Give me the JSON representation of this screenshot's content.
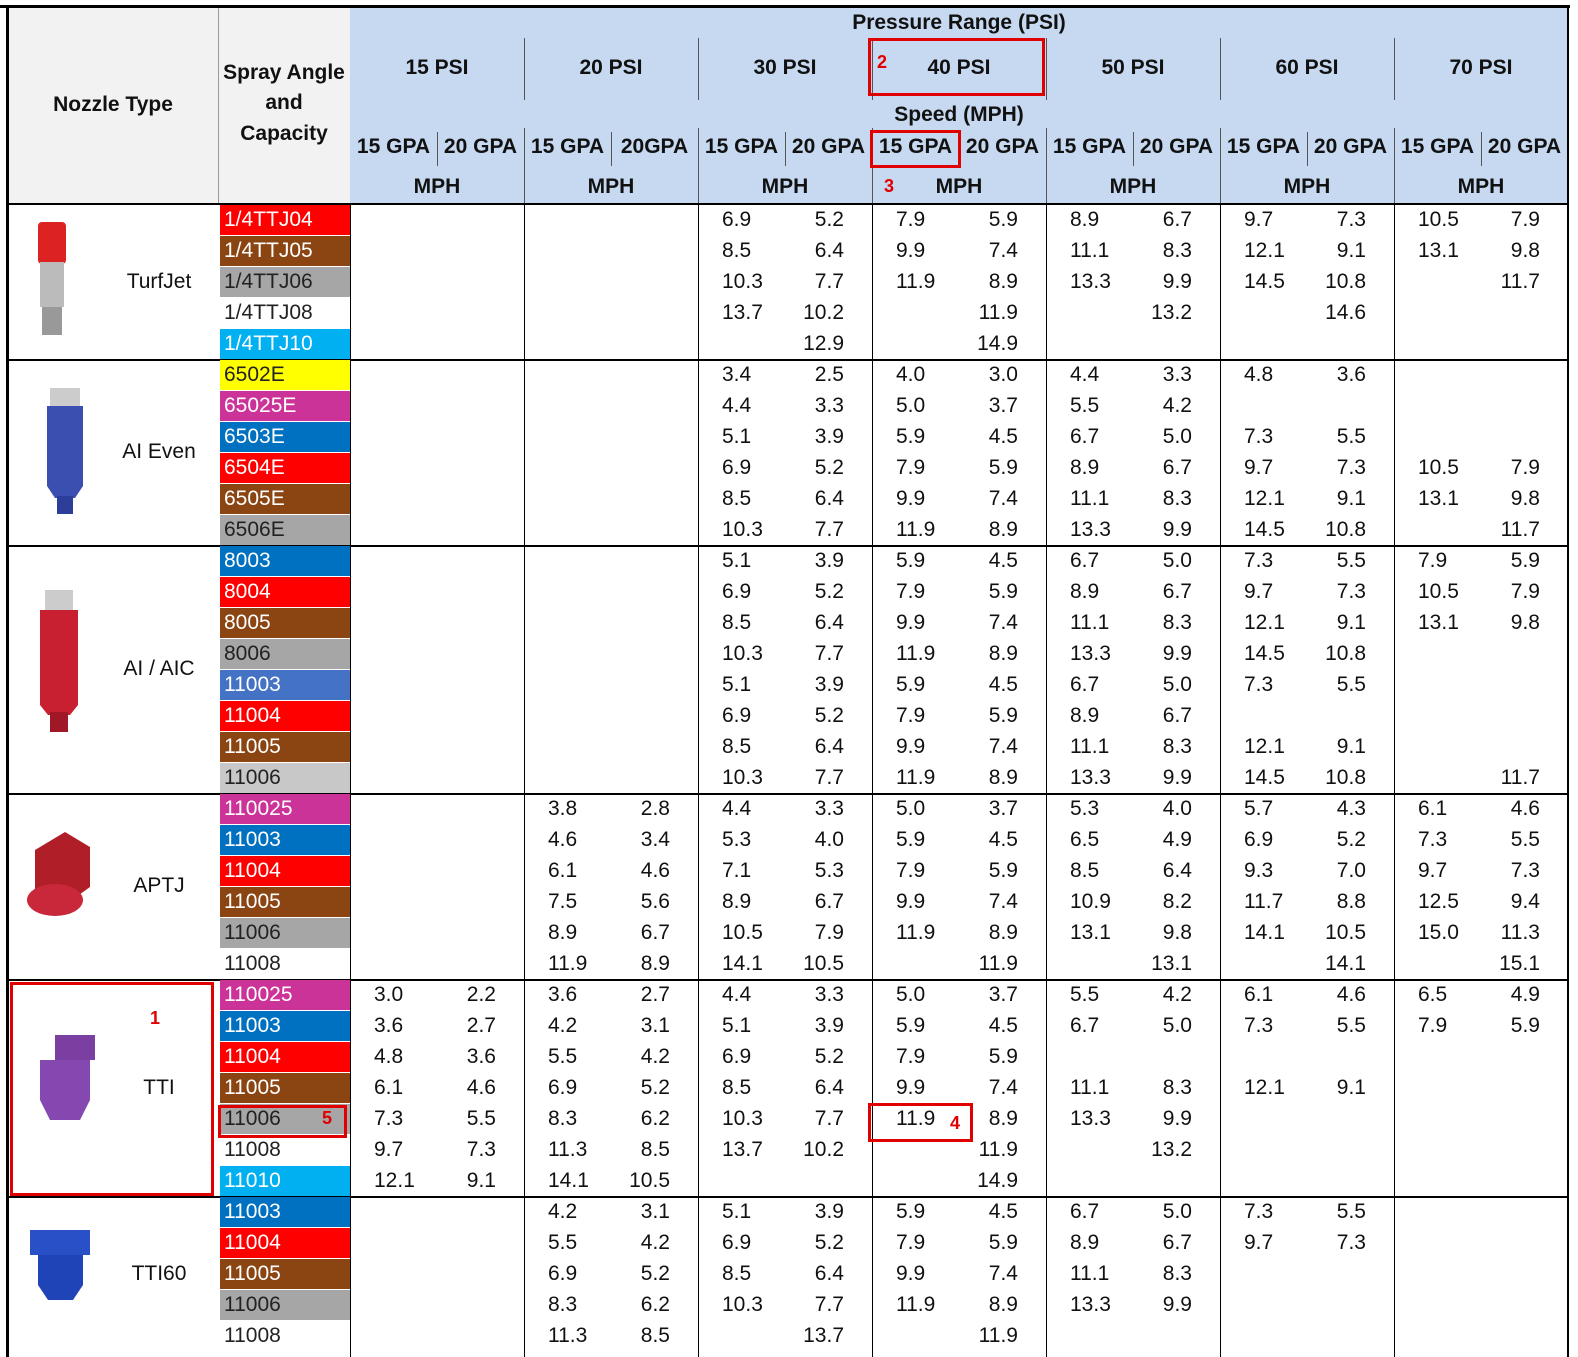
{
  "header": {
    "nozzle_type": "Nozzle Type",
    "spray_angle": "Spray Angle\nand\nCapacity",
    "pressure_range": "Pressure Range (PSI)",
    "speed": "Speed (MPH)",
    "pressures": [
      "15 PSI",
      "20 PSI",
      "30 PSI",
      "40 PSI",
      "50 PSI",
      "60 PSI",
      "70 PSI"
    ],
    "gpa": [
      "15 GPA",
      "20 GPA",
      "15 GPA",
      "20GPA",
      "15 GPA",
      "20 GPA",
      "15 GPA",
      "20 GPA",
      "15 GPA",
      "20 GPA",
      "15 GPA",
      "20 GPA",
      "15 GPA",
      "20 GPA"
    ],
    "mph": [
      "MPH",
      "MPH",
      "MPH",
      "MPH",
      "MPH",
      "MPH",
      "MPH"
    ]
  },
  "groups": [
    {
      "name": "TurfJet",
      "tips": [
        {
          "label": "1/4TTJ04",
          "color": "#ff0000",
          "values": [
            null,
            null,
            null,
            null,
            "6.9",
            "5.2",
            "7.9",
            "5.9",
            "8.9",
            "6.7",
            "9.7",
            "7.3",
            "10.5",
            "7.9"
          ]
        },
        {
          "label": "1/4TTJ05",
          "color": "#8b4513",
          "values": [
            null,
            null,
            null,
            null,
            "8.5",
            "6.4",
            "9.9",
            "7.4",
            "11.1",
            "8.3",
            "12.1",
            "9.1",
            "13.1",
            "9.8"
          ]
        },
        {
          "label": "1/4TTJ06",
          "color": "#a6a6a6",
          "values": [
            null,
            null,
            null,
            null,
            "10.3",
            "7.7",
            "11.9",
            "8.9",
            "13.3",
            "9.9",
            "14.5",
            "10.8",
            null,
            "11.7"
          ]
        },
        {
          "label": "1/4TTJ08",
          "color": "#ffffff",
          "values": [
            null,
            null,
            null,
            null,
            "13.7",
            "10.2",
            null,
            "11.9",
            null,
            "13.2",
            null,
            "14.6",
            null,
            null
          ]
        },
        {
          "label": "1/4TTJ10",
          "color": "#00b0f0",
          "values": [
            null,
            null,
            null,
            null,
            null,
            "12.9",
            null,
            "14.9",
            null,
            null,
            null,
            null,
            null,
            null
          ]
        }
      ]
    },
    {
      "name": "AI Even",
      "tips": [
        {
          "label": "6502E",
          "color": "#ffff00",
          "values": [
            null,
            null,
            null,
            null,
            "3.4",
            "2.5",
            "4.0",
            "3.0",
            "4.4",
            "3.3",
            "4.8",
            "3.6",
            null,
            null
          ]
        },
        {
          "label": "65025E",
          "color": "#cc3399",
          "values": [
            null,
            null,
            null,
            null,
            "4.4",
            "3.3",
            "5.0",
            "3.7",
            "5.5",
            "4.2",
            null,
            null,
            null,
            null
          ]
        },
        {
          "label": "6503E",
          "color": "#0070c0",
          "values": [
            null,
            null,
            null,
            null,
            "5.1",
            "3.9",
            "5.9",
            "4.5",
            "6.7",
            "5.0",
            "7.3",
            "5.5",
            null,
            null
          ]
        },
        {
          "label": "6504E",
          "color": "#ff0000",
          "values": [
            null,
            null,
            null,
            null,
            "6.9",
            "5.2",
            "7.9",
            "5.9",
            "8.9",
            "6.7",
            "9.7",
            "7.3",
            "10.5",
            "7.9"
          ]
        },
        {
          "label": "6505E",
          "color": "#8b4513",
          "values": [
            null,
            null,
            null,
            null,
            "8.5",
            "6.4",
            "9.9",
            "7.4",
            "11.1",
            "8.3",
            "12.1",
            "9.1",
            "13.1",
            "9.8"
          ]
        },
        {
          "label": "6506E",
          "color": "#a6a6a6",
          "values": [
            null,
            null,
            null,
            null,
            "10.3",
            "7.7",
            "11.9",
            "8.9",
            "13.3",
            "9.9",
            "14.5",
            "10.8",
            null,
            "11.7"
          ]
        }
      ]
    },
    {
      "name": "AI / AIC",
      "tips": [
        {
          "label": "8003",
          "color": "#0070c0",
          "values": [
            null,
            null,
            null,
            null,
            "5.1",
            "3.9",
            "5.9",
            "4.5",
            "6.7",
            "5.0",
            "7.3",
            "5.5",
            "7.9",
            "5.9"
          ]
        },
        {
          "label": "8004",
          "color": "#ff0000",
          "values": [
            null,
            null,
            null,
            null,
            "6.9",
            "5.2",
            "7.9",
            "5.9",
            "8.9",
            "6.7",
            "9.7",
            "7.3",
            "10.5",
            "7.9"
          ]
        },
        {
          "label": "8005",
          "color": "#8b4513",
          "values": [
            null,
            null,
            null,
            null,
            "8.5",
            "6.4",
            "9.9",
            "7.4",
            "11.1",
            "8.3",
            "12.1",
            "9.1",
            "13.1",
            "9.8"
          ]
        },
        {
          "label": "8006",
          "color": "#a6a6a6",
          "values": [
            null,
            null,
            null,
            null,
            "10.3",
            "7.7",
            "11.9",
            "8.9",
            "13.3",
            "9.9",
            "14.5",
            "10.8",
            null,
            null
          ]
        },
        {
          "label": "11003",
          "color": "#4472c4",
          "values": [
            null,
            null,
            null,
            null,
            "5.1",
            "3.9",
            "5.9",
            "4.5",
            "6.7",
            "5.0",
            "7.3",
            "5.5",
            null,
            null
          ]
        },
        {
          "label": "11004",
          "color": "#ff0000",
          "values": [
            null,
            null,
            null,
            null,
            "6.9",
            "5.2",
            "7.9",
            "5.9",
            "8.9",
            "6.7",
            null,
            null,
            null,
            null
          ]
        },
        {
          "label": "11005",
          "color": "#8b4513",
          "values": [
            null,
            null,
            null,
            null,
            "8.5",
            "6.4",
            "9.9",
            "7.4",
            "11.1",
            "8.3",
            "12.1",
            "9.1",
            null,
            null
          ]
        },
        {
          "label": "11006",
          "color": "#c8c8c8",
          "values": [
            null,
            null,
            null,
            null,
            "10.3",
            "7.7",
            "11.9",
            "8.9",
            "13.3",
            "9.9",
            "14.5",
            "10.8",
            null,
            "11.7"
          ]
        }
      ]
    },
    {
      "name": "APTJ",
      "tips": [
        {
          "label": "110025",
          "color": "#cc3399",
          "values": [
            null,
            null,
            "3.8",
            "2.8",
            "4.4",
            "3.3",
            "5.0",
            "3.7",
            "5.3",
            "4.0",
            "5.7",
            "4.3",
            "6.1",
            "4.6"
          ]
        },
        {
          "label": "11003",
          "color": "#0070c0",
          "values": [
            null,
            null,
            "4.6",
            "3.4",
            "5.3",
            "4.0",
            "5.9",
            "4.5",
            "6.5",
            "4.9",
            "6.9",
            "5.2",
            "7.3",
            "5.5"
          ]
        },
        {
          "label": "11004",
          "color": "#ff0000",
          "values": [
            null,
            null,
            "6.1",
            "4.6",
            "7.1",
            "5.3",
            "7.9",
            "5.9",
            "8.5",
            "6.4",
            "9.3",
            "7.0",
            "9.7",
            "7.3"
          ]
        },
        {
          "label": "11005",
          "color": "#8b4513",
          "values": [
            null,
            null,
            "7.5",
            "5.6",
            "8.9",
            "6.7",
            "9.9",
            "7.4",
            "10.9",
            "8.2",
            "11.7",
            "8.8",
            "12.5",
            "9.4"
          ]
        },
        {
          "label": "11006",
          "color": "#a6a6a6",
          "values": [
            null,
            null,
            "8.9",
            "6.7",
            "10.5",
            "7.9",
            "11.9",
            "8.9",
            "13.1",
            "9.8",
            "14.1",
            "10.5",
            "15.0",
            "11.3"
          ]
        },
        {
          "label": "11008",
          "color": "#ffffff",
          "values": [
            null,
            null,
            "11.9",
            "8.9",
            "14.1",
            "10.5",
            null,
            "11.9",
            null,
            "13.1",
            null,
            "14.1",
            null,
            "15.1"
          ]
        }
      ]
    },
    {
      "name": "TTI",
      "tips": [
        {
          "label": "110025",
          "color": "#cc3399",
          "values": [
            "3.0",
            "2.2",
            "3.6",
            "2.7",
            "4.4",
            "3.3",
            "5.0",
            "3.7",
            "5.5",
            "4.2",
            "6.1",
            "4.6",
            "6.5",
            "4.9"
          ]
        },
        {
          "label": "11003",
          "color": "#0070c0",
          "values": [
            "3.6",
            "2.7",
            "4.2",
            "3.1",
            "5.1",
            "3.9",
            "5.9",
            "4.5",
            "6.7",
            "5.0",
            "7.3",
            "5.5",
            "7.9",
            "5.9"
          ]
        },
        {
          "label": "11004",
          "color": "#ff0000",
          "values": [
            "4.8",
            "3.6",
            "5.5",
            "4.2",
            "6.9",
            "5.2",
            "7.9",
            "5.9",
            null,
            null,
            null,
            null,
            null,
            null
          ]
        },
        {
          "label": "11005",
          "color": "#8b4513",
          "values": [
            "6.1",
            "4.6",
            "6.9",
            "5.2",
            "8.5",
            "6.4",
            "9.9",
            "7.4",
            "11.1",
            "8.3",
            "12.1",
            "9.1",
            null,
            null
          ]
        },
        {
          "label": "11006",
          "color": "#a6a6a6",
          "values": [
            "7.3",
            "5.5",
            "8.3",
            "6.2",
            "10.3",
            "7.7",
            "11.9",
            "8.9",
            "13.3",
            "9.9",
            null,
            null,
            null,
            null
          ]
        },
        {
          "label": "11008",
          "color": "#ffffff",
          "values": [
            "9.7",
            "7.3",
            "11.3",
            "8.5",
            "13.7",
            "10.2",
            null,
            "11.9",
            null,
            "13.2",
            null,
            null,
            null,
            null
          ]
        },
        {
          "label": "11010",
          "color": "#00b0f0",
          "values": [
            "12.1",
            "9.1",
            "14.1",
            "10.5",
            null,
            null,
            null,
            "14.9",
            null,
            null,
            null,
            null,
            null,
            null
          ]
        }
      ]
    },
    {
      "name": "TTI60",
      "tips": [
        {
          "label": "11003",
          "color": "#0070c0",
          "values": [
            null,
            null,
            "4.2",
            "3.1",
            "5.1",
            "3.9",
            "5.9",
            "4.5",
            "6.7",
            "5.0",
            "7.3",
            "5.5",
            null,
            null
          ]
        },
        {
          "label": "11004",
          "color": "#ff0000",
          "values": [
            null,
            null,
            "5.5",
            "4.2",
            "6.9",
            "5.2",
            "7.9",
            "5.9",
            "8.9",
            "6.7",
            "9.7",
            "7.3",
            null,
            null
          ]
        },
        {
          "label": "11005",
          "color": "#8b4513",
          "values": [
            null,
            null,
            "6.9",
            "5.2",
            "8.5",
            "6.4",
            "9.9",
            "7.4",
            "11.1",
            "8.3",
            null,
            null,
            null,
            null
          ]
        },
        {
          "label": "11006",
          "color": "#a6a6a6",
          "values": [
            null,
            null,
            "8.3",
            "6.2",
            "10.3",
            "7.7",
            "11.9",
            "8.9",
            "13.3",
            "9.9",
            null,
            null,
            null,
            null
          ]
        },
        {
          "label": "11008",
          "color": "#ffffff",
          "values": [
            null,
            null,
            "11.3",
            "8.5",
            null,
            "13.7",
            null,
            "11.9",
            null,
            null,
            null,
            null,
            null,
            null
          ]
        }
      ]
    }
  ],
  "annotations": [
    "1",
    "2",
    "3",
    "4",
    "5"
  ]
}
